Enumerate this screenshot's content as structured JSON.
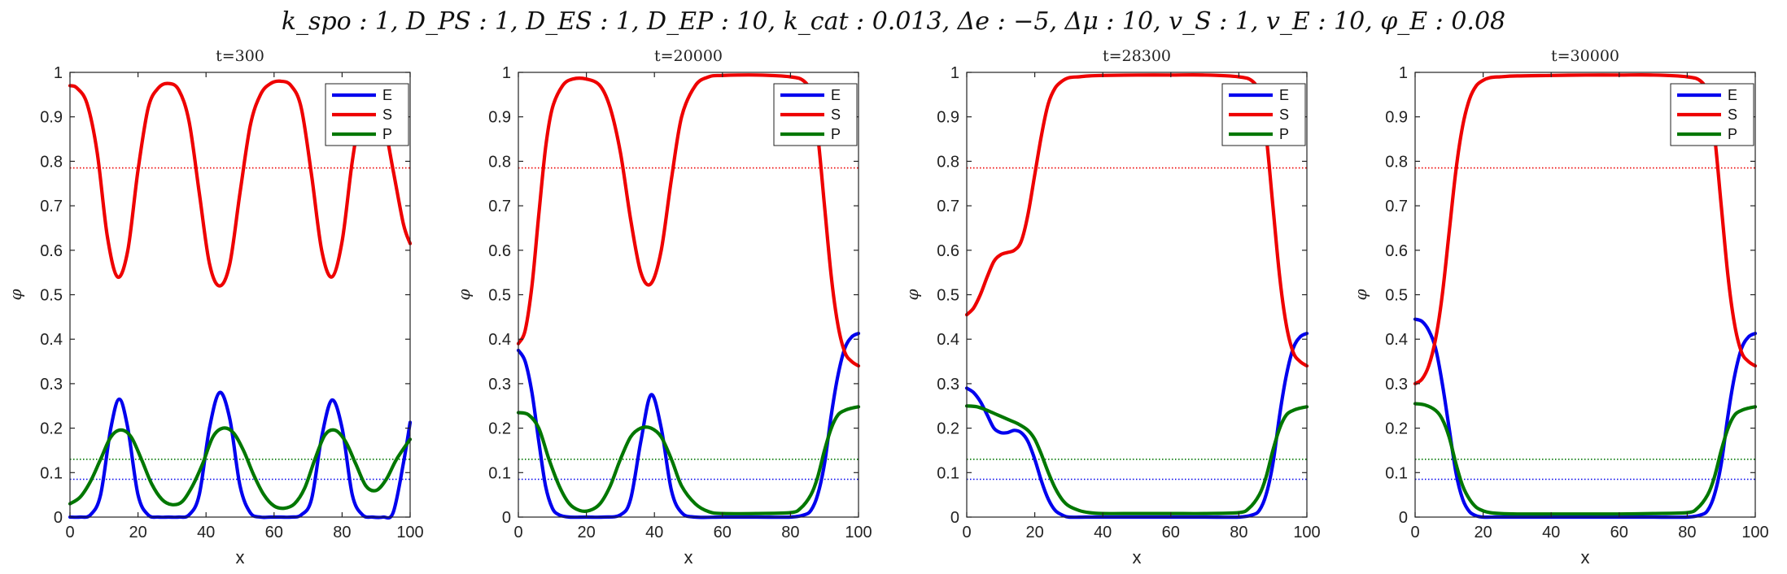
{
  "figure": {
    "suptitle": "k_spo : 1, D_PS : 1, D_ES : 1, D_EP : 10, k_cat : 0.013, Δe : −5, Δμ : 10, v_S : 1, v_E : 10, φ_E : 0.08"
  },
  "chart_data": [
    {
      "type": "line",
      "title": "t=300",
      "xlabel": "x",
      "ylabel": "φ",
      "xlim": [
        0,
        100
      ],
      "ylim": [
        0,
        1
      ],
      "xticks": [
        "0",
        "20",
        "40",
        "60",
        "80",
        "100"
      ],
      "yticks": [
        "0",
        "0.1",
        "0.2",
        "0.3",
        "0.4",
        "0.5",
        "0.6",
        "0.7",
        "0.8",
        "0.9",
        "1"
      ],
      "grid": false,
      "legend_position": "top-right",
      "series": [
        {
          "name": "E",
          "color": "#0000ee",
          "x": [
            0,
            3,
            6,
            9,
            12,
            14.5,
            17,
            20,
            23,
            26,
            29,
            32,
            35,
            38,
            41,
            44,
            47,
            50,
            53,
            56,
            59,
            62,
            65,
            68,
            71,
            74,
            77,
            80,
            83,
            86,
            89,
            92,
            95,
            98,
            100
          ],
          "y": [
            0.0,
            0.0,
            0.005,
            0.05,
            0.2,
            0.265,
            0.2,
            0.05,
            0.005,
            0.0,
            0.0,
            0.0,
            0.005,
            0.05,
            0.2,
            0.28,
            0.22,
            0.07,
            0.01,
            0.0,
            0.0,
            0.0,
            0.0,
            0.005,
            0.04,
            0.18,
            0.263,
            0.2,
            0.05,
            0.005,
            0.0,
            0.0,
            0.01,
            0.12,
            0.213
          ]
        },
        {
          "name": "S",
          "color": "#ee0000",
          "x": [
            0,
            2,
            5,
            8,
            11,
            14,
            17,
            20,
            23,
            26,
            29,
            32,
            35,
            38,
            41,
            44,
            47,
            50,
            53,
            56,
            59,
            62,
            65,
            68,
            71,
            74,
            77,
            80,
            83,
            86,
            89,
            92,
            95,
            98,
            100
          ],
          "y": [
            0.97,
            0.965,
            0.93,
            0.82,
            0.63,
            0.54,
            0.6,
            0.78,
            0.92,
            0.965,
            0.975,
            0.96,
            0.89,
            0.73,
            0.57,
            0.52,
            0.57,
            0.73,
            0.88,
            0.95,
            0.975,
            0.98,
            0.97,
            0.92,
            0.77,
            0.6,
            0.54,
            0.62,
            0.8,
            0.93,
            0.96,
            0.9,
            0.78,
            0.66,
            0.615
          ]
        },
        {
          "name": "P",
          "color": "#007700",
          "x": [
            0,
            3,
            6,
            9,
            12,
            15,
            18,
            21,
            24,
            27,
            30,
            33,
            36,
            39,
            42,
            45,
            48,
            51,
            54,
            57,
            60,
            63,
            66,
            69,
            72,
            75,
            78,
            81,
            84,
            87,
            90,
            93,
            96,
            100
          ],
          "y": [
            0.03,
            0.045,
            0.08,
            0.13,
            0.18,
            0.196,
            0.18,
            0.13,
            0.075,
            0.04,
            0.028,
            0.035,
            0.07,
            0.12,
            0.18,
            0.2,
            0.19,
            0.15,
            0.095,
            0.05,
            0.025,
            0.02,
            0.03,
            0.065,
            0.13,
            0.185,
            0.195,
            0.17,
            0.12,
            0.07,
            0.06,
            0.085,
            0.13,
            0.175
          ]
        }
      ],
      "reference_lines": [
        {
          "name": "S-ref",
          "color": "#ee0000",
          "y": 0.785
        },
        {
          "name": "P-ref",
          "color": "#007700",
          "y": 0.13
        },
        {
          "name": "E-ref",
          "color": "#0000ee",
          "y": 0.085
        }
      ]
    },
    {
      "type": "line",
      "title": "t=20000",
      "xlabel": "x",
      "ylabel": "φ",
      "xlim": [
        0,
        100
      ],
      "ylim": [
        0,
        1
      ],
      "xticks": [
        "0",
        "20",
        "40",
        "60",
        "80",
        "100"
      ],
      "yticks": [
        "0",
        "0.1",
        "0.2",
        "0.3",
        "0.4",
        "0.5",
        "0.6",
        "0.7",
        "0.8",
        "0.9",
        "1"
      ],
      "grid": false,
      "legend_position": "top-right",
      "series": [
        {
          "name": "E",
          "color": "#0000ee",
          "x": [
            0,
            2,
            4,
            6,
            8,
            10,
            12,
            15,
            20,
            25,
            30,
            33,
            36,
            39,
            42,
            45,
            48,
            52,
            60,
            70,
            80,
            84,
            86,
            88,
            90,
            92,
            94,
            96,
            98,
            100
          ],
          "y": [
            0.375,
            0.35,
            0.28,
            0.17,
            0.07,
            0.02,
            0.005,
            0.0,
            0.0,
            0.0,
            0.005,
            0.04,
            0.17,
            0.275,
            0.2,
            0.06,
            0.01,
            0.0,
            0.0,
            0.0,
            0.0,
            0.005,
            0.015,
            0.05,
            0.12,
            0.23,
            0.32,
            0.38,
            0.405,
            0.413
          ]
        },
        {
          "name": "S",
          "color": "#ee0000",
          "x": [
            0,
            2,
            4,
            6,
            8,
            10,
            13,
            16,
            20,
            24,
            27,
            30,
            33,
            36,
            39,
            42,
            45,
            48,
            52,
            56,
            60,
            70,
            80,
            84,
            86,
            88,
            90,
            92,
            94,
            96,
            98,
            100
          ],
          "y": [
            0.39,
            0.42,
            0.52,
            0.68,
            0.83,
            0.92,
            0.97,
            0.985,
            0.985,
            0.97,
            0.92,
            0.82,
            0.67,
            0.55,
            0.525,
            0.6,
            0.76,
            0.9,
            0.97,
            0.99,
            0.993,
            0.994,
            0.99,
            0.98,
            0.95,
            0.86,
            0.7,
            0.54,
            0.43,
            0.37,
            0.35,
            0.34
          ]
        },
        {
          "name": "P",
          "color": "#007700",
          "x": [
            0,
            3,
            6,
            9,
            12,
            15,
            18,
            21,
            24,
            27,
            30,
            33,
            36,
            39,
            42,
            45,
            48,
            52,
            56,
            60,
            70,
            80,
            83,
            86,
            88,
            90,
            92,
            94,
            96,
            98,
            100
          ],
          "y": [
            0.235,
            0.23,
            0.2,
            0.13,
            0.07,
            0.03,
            0.015,
            0.015,
            0.03,
            0.07,
            0.13,
            0.18,
            0.2,
            0.2,
            0.18,
            0.13,
            0.07,
            0.03,
            0.012,
            0.008,
            0.008,
            0.01,
            0.02,
            0.05,
            0.09,
            0.15,
            0.2,
            0.23,
            0.24,
            0.245,
            0.248
          ]
        }
      ],
      "reference_lines": [
        {
          "name": "S-ref",
          "color": "#ee0000",
          "y": 0.785
        },
        {
          "name": "P-ref",
          "color": "#007700",
          "y": 0.13
        },
        {
          "name": "E-ref",
          "color": "#0000ee",
          "y": 0.085
        }
      ]
    },
    {
      "type": "line",
      "title": "t=28300",
      "xlabel": "x",
      "ylabel": "φ",
      "xlim": [
        0,
        100
      ],
      "ylim": [
        0,
        1
      ],
      "xticks": [
        "0",
        "20",
        "40",
        "60",
        "80",
        "100"
      ],
      "yticks": [
        "0",
        "0.1",
        "0.2",
        "0.3",
        "0.4",
        "0.5",
        "0.6",
        "0.7",
        "0.8",
        "0.9",
        "1"
      ],
      "grid": false,
      "legend_position": "top-right",
      "series": [
        {
          "name": "E",
          "color": "#0000ee",
          "x": [
            0,
            2,
            4,
            6,
            8,
            10,
            12,
            14,
            16,
            18,
            20,
            22,
            24,
            26,
            28,
            30,
            35,
            40,
            50,
            60,
            70,
            80,
            84,
            86,
            88,
            90,
            92,
            94,
            96,
            98,
            100
          ],
          "y": [
            0.29,
            0.28,
            0.26,
            0.23,
            0.2,
            0.19,
            0.19,
            0.195,
            0.19,
            0.17,
            0.13,
            0.08,
            0.04,
            0.015,
            0.005,
            0.0,
            0.0,
            0.0,
            0.0,
            0.0,
            0.0,
            0.0,
            0.005,
            0.015,
            0.05,
            0.12,
            0.23,
            0.32,
            0.38,
            0.405,
            0.413
          ]
        },
        {
          "name": "S",
          "color": "#ee0000",
          "x": [
            0,
            2,
            4,
            6,
            8,
            10,
            12,
            14,
            16,
            18,
            20,
            22,
            24,
            26,
            28,
            30,
            33,
            36,
            40,
            50,
            60,
            70,
            80,
            84,
            86,
            88,
            90,
            92,
            94,
            96,
            98,
            100
          ],
          "y": [
            0.455,
            0.47,
            0.5,
            0.54,
            0.575,
            0.59,
            0.595,
            0.6,
            0.62,
            0.68,
            0.77,
            0.86,
            0.93,
            0.965,
            0.98,
            0.988,
            0.99,
            0.992,
            0.993,
            0.994,
            0.994,
            0.994,
            0.99,
            0.98,
            0.95,
            0.86,
            0.7,
            0.54,
            0.43,
            0.37,
            0.35,
            0.34
          ]
        },
        {
          "name": "P",
          "color": "#007700",
          "x": [
            0,
            3,
            6,
            9,
            12,
            15,
            18,
            20,
            22,
            24,
            26,
            28,
            30,
            33,
            36,
            40,
            50,
            60,
            70,
            80,
            83,
            86,
            88,
            90,
            92,
            94,
            96,
            98,
            100
          ],
          "y": [
            0.25,
            0.248,
            0.24,
            0.23,
            0.22,
            0.21,
            0.195,
            0.175,
            0.14,
            0.1,
            0.065,
            0.04,
            0.025,
            0.015,
            0.01,
            0.008,
            0.008,
            0.008,
            0.008,
            0.01,
            0.02,
            0.05,
            0.09,
            0.15,
            0.2,
            0.23,
            0.24,
            0.245,
            0.248
          ]
        }
      ],
      "reference_lines": [
        {
          "name": "S-ref",
          "color": "#ee0000",
          "y": 0.785
        },
        {
          "name": "P-ref",
          "color": "#007700",
          "y": 0.13
        },
        {
          "name": "E-ref",
          "color": "#0000ee",
          "y": 0.085
        }
      ]
    },
    {
      "type": "line",
      "title": "t=30000",
      "xlabel": "x",
      "ylabel": "φ",
      "xlim": [
        0,
        100
      ],
      "ylim": [
        0,
        1
      ],
      "xticks": [
        "0",
        "20",
        "40",
        "60",
        "80",
        "100"
      ],
      "yticks": [
        "0",
        "0.1",
        "0.2",
        "0.3",
        "0.4",
        "0.5",
        "0.6",
        "0.7",
        "0.8",
        "0.9",
        "1"
      ],
      "grid": false,
      "legend_position": "top-right",
      "series": [
        {
          "name": "E",
          "color": "#0000ee",
          "x": [
            0,
            2,
            4,
            6,
            8,
            10,
            12,
            14,
            16,
            18,
            20,
            24,
            30,
            40,
            50,
            60,
            70,
            80,
            84,
            86,
            88,
            90,
            92,
            94,
            96,
            98,
            100
          ],
          "y": [
            0.445,
            0.44,
            0.42,
            0.38,
            0.3,
            0.2,
            0.1,
            0.04,
            0.012,
            0.003,
            0.0,
            0.0,
            0.0,
            0.0,
            0.0,
            0.0,
            0.0,
            0.0,
            0.005,
            0.015,
            0.05,
            0.12,
            0.23,
            0.32,
            0.38,
            0.405,
            0.413
          ]
        },
        {
          "name": "S",
          "color": "#ee0000",
          "x": [
            0,
            2,
            4,
            6,
            8,
            10,
            12,
            14,
            16,
            18,
            20,
            22,
            25,
            30,
            40,
            50,
            60,
            70,
            80,
            84,
            86,
            88,
            90,
            92,
            94,
            96,
            98,
            100
          ],
          "y": [
            0.3,
            0.31,
            0.34,
            0.4,
            0.5,
            0.64,
            0.78,
            0.88,
            0.94,
            0.97,
            0.982,
            0.988,
            0.99,
            0.992,
            0.993,
            0.994,
            0.994,
            0.994,
            0.99,
            0.98,
            0.95,
            0.86,
            0.7,
            0.54,
            0.43,
            0.37,
            0.35,
            0.34
          ]
        },
        {
          "name": "P",
          "color": "#007700",
          "x": [
            0,
            3,
            6,
            8,
            10,
            12,
            14,
            16,
            18,
            20,
            22,
            25,
            30,
            40,
            50,
            60,
            70,
            80,
            83,
            86,
            88,
            90,
            92,
            94,
            96,
            98,
            100
          ],
          "y": [
            0.255,
            0.252,
            0.24,
            0.22,
            0.18,
            0.12,
            0.07,
            0.04,
            0.022,
            0.014,
            0.01,
            0.008,
            0.007,
            0.007,
            0.007,
            0.007,
            0.008,
            0.01,
            0.02,
            0.05,
            0.09,
            0.15,
            0.2,
            0.23,
            0.24,
            0.245,
            0.248
          ]
        }
      ],
      "reference_lines": [
        {
          "name": "S-ref",
          "color": "#ee0000",
          "y": 0.785
        },
        {
          "name": "P-ref",
          "color": "#007700",
          "y": 0.13
        },
        {
          "name": "E-ref",
          "color": "#0000ee",
          "y": 0.085
        }
      ]
    }
  ]
}
